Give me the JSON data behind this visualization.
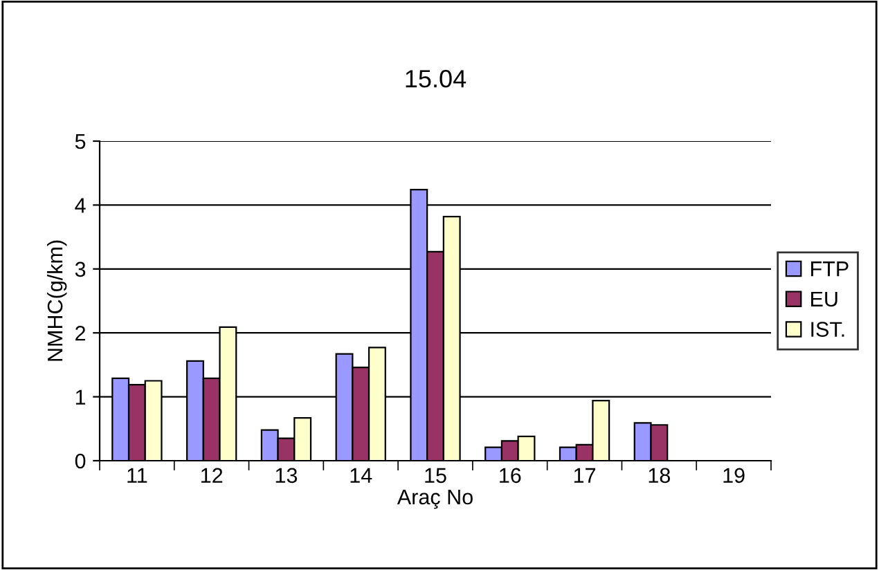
{
  "chart_data": {
    "type": "bar",
    "title": "15.04",
    "xlabel": "Araç No",
    "ylabel": "NMHC(g/km)",
    "categories": [
      "11",
      "12",
      "13",
      "14",
      "15",
      "16",
      "17",
      "18",
      "19"
    ],
    "series": [
      {
        "name": "FTP",
        "color": "#9999ff",
        "values": [
          1.29,
          1.56,
          0.48,
          1.67,
          4.24,
          0.21,
          0.21,
          0.59,
          null
        ]
      },
      {
        "name": "EU",
        "color": "#993366",
        "values": [
          1.19,
          1.29,
          0.35,
          1.46,
          3.27,
          0.31,
          0.25,
          0.56,
          null
        ]
      },
      {
        "name": "IST.",
        "color": "#ffffcc",
        "values": [
          1.25,
          2.09,
          0.67,
          1.77,
          3.82,
          0.38,
          0.94,
          null,
          null
        ]
      }
    ],
    "ylim": [
      0,
      5
    ],
    "yticks": [
      0,
      1,
      2,
      3,
      4,
      5
    ],
    "grid": "y",
    "legend": "right"
  }
}
